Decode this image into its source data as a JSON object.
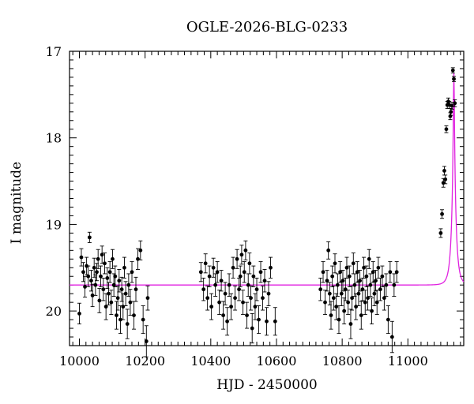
{
  "chart_data": {
    "type": "scatter",
    "title": "OGLE-2026-BLG-0233",
    "xlabel": "HJD - 2450000",
    "ylabel": "I magnitude",
    "xlim": [
      9970,
      11170
    ],
    "ylim": [
      17.0,
      20.4
    ],
    "y_inverted": true,
    "first_y_tick": 17,
    "x_ticks": [
      10000,
      10200,
      10400,
      10600,
      10800,
      11000
    ],
    "y_ticks": [
      17,
      18,
      19,
      20
    ],
    "x_tick_labels": [
      "10000",
      "10200",
      "10400",
      "10600",
      "10800",
      "11000"
    ],
    "y_tick_labels": [
      "17",
      "18",
      "19",
      "20"
    ],
    "colors": {
      "points": "#000000",
      "model": "#e020e0"
    },
    "series": [
      {
        "style": "points-with-errorbars",
        "points": [
          [
            10000,
            20.03,
            0.12
          ],
          [
            10006,
            19.38,
            0.1
          ],
          [
            10012,
            19.55,
            0.11
          ],
          [
            10017,
            19.72,
            0.12
          ],
          [
            10022,
            19.48,
            0.1
          ],
          [
            10027,
            19.6,
            0.12
          ],
          [
            10031,
            19.15,
            0.06
          ],
          [
            10036,
            19.65,
            0.12
          ],
          [
            10040,
            19.82,
            0.13
          ],
          [
            10045,
            19.5,
            0.11
          ],
          [
            10049,
            19.7,
            0.12
          ],
          [
            10053,
            19.55,
            0.1
          ],
          [
            10057,
            19.4,
            0.11
          ],
          [
            10061,
            19.88,
            0.14
          ],
          [
            10065,
            19.6,
            0.12
          ],
          [
            10069,
            19.35,
            0.1
          ],
          [
            10073,
            19.75,
            0.13
          ],
          [
            10077,
            19.45,
            0.12
          ],
          [
            10081,
            19.95,
            0.15
          ],
          [
            10085,
            19.62,
            0.12
          ],
          [
            10089,
            19.8,
            0.13
          ],
          [
            10093,
            19.55,
            0.12
          ],
          [
            10097,
            19.9,
            0.14
          ],
          [
            10101,
            19.4,
            0.11
          ],
          [
            10105,
            19.7,
            0.13
          ],
          [
            10109,
            19.6,
            0.12
          ],
          [
            10113,
            20.05,
            0.16
          ],
          [
            10117,
            19.85,
            0.14
          ],
          [
            10121,
            19.65,
            0.13
          ],
          [
            10125,
            20.1,
            0.16
          ],
          [
            10129,
            19.75,
            0.14
          ],
          [
            10133,
            19.95,
            0.15
          ],
          [
            10137,
            19.5,
            0.12
          ],
          [
            10141,
            19.8,
            0.14
          ],
          [
            10146,
            20.15,
            0.17
          ],
          [
            10150,
            19.7,
            0.13
          ],
          [
            10155,
            19.9,
            0.15
          ],
          [
            10160,
            19.55,
            0.12
          ],
          [
            10166,
            20.05,
            0.16
          ],
          [
            10172,
            19.75,
            0.14
          ],
          [
            10178,
            19.4,
            0.12
          ],
          [
            10186,
            19.3,
            0.11
          ],
          [
            10194,
            20.1,
            0.16
          ],
          [
            10204,
            20.35,
            0.18
          ],
          [
            10208,
            19.85,
            0.14
          ],
          [
            10370,
            19.55,
            0.11
          ],
          [
            10378,
            19.75,
            0.13
          ],
          [
            10384,
            19.45,
            0.11
          ],
          [
            10390,
            19.85,
            0.14
          ],
          [
            10396,
            19.6,
            0.12
          ],
          [
            10402,
            19.95,
            0.15
          ],
          [
            10408,
            19.5,
            0.11
          ],
          [
            10414,
            19.7,
            0.13
          ],
          [
            10420,
            19.55,
            0.12
          ],
          [
            10426,
            19.9,
            0.14
          ],
          [
            10432,
            19.65,
            0.12
          ],
          [
            10438,
            20.05,
            0.16
          ],
          [
            10444,
            19.8,
            0.13
          ],
          [
            10450,
            20.12,
            0.16
          ],
          [
            10456,
            19.7,
            0.13
          ],
          [
            10462,
            19.95,
            0.15
          ],
          [
            10468,
            19.5,
            0.12
          ],
          [
            10474,
            19.85,
            0.14
          ],
          [
            10480,
            19.4,
            0.11
          ],
          [
            10486,
            19.75,
            0.13
          ],
          [
            10490,
            19.6,
            0.12
          ],
          [
            10494,
            19.35,
            0.11
          ],
          [
            10498,
            19.9,
            0.14
          ],
          [
            10502,
            19.55,
            0.12
          ],
          [
            10506,
            19.3,
            0.11
          ],
          [
            10510,
            20.05,
            0.15
          ],
          [
            10514,
            19.7,
            0.13
          ],
          [
            10518,
            19.45,
            0.12
          ],
          [
            10522,
            19.85,
            0.14
          ],
          [
            10526,
            20.2,
            0.17
          ],
          [
            10530,
            19.6,
            0.12
          ],
          [
            10535,
            19.95,
            0.15
          ],
          [
            10540,
            19.75,
            0.13
          ],
          [
            10546,
            20.1,
            0.16
          ],
          [
            10552,
            19.55,
            0.12
          ],
          [
            10558,
            19.85,
            0.14
          ],
          [
            10564,
            19.65,
            0.13
          ],
          [
            10570,
            20.12,
            0.16
          ],
          [
            10576,
            19.8,
            0.14
          ],
          [
            10582,
            19.5,
            0.12
          ],
          [
            10596,
            20.12,
            0.16
          ],
          [
            10734,
            19.75,
            0.13
          ],
          [
            10742,
            19.55,
            0.12
          ],
          [
            10748,
            19.9,
            0.14
          ],
          [
            10754,
            19.65,
            0.12
          ],
          [
            10758,
            19.3,
            0.1
          ],
          [
            10762,
            19.8,
            0.13
          ],
          [
            10766,
            20.05,
            0.16
          ],
          [
            10770,
            19.6,
            0.12
          ],
          [
            10774,
            19.85,
            0.14
          ],
          [
            10778,
            19.45,
            0.11
          ],
          [
            10782,
            19.95,
            0.15
          ],
          [
            10786,
            19.7,
            0.13
          ],
          [
            10790,
            20.1,
            0.16
          ],
          [
            10794,
            19.55,
            0.12
          ],
          [
            10798,
            19.8,
            0.14
          ],
          [
            10802,
            19.65,
            0.12
          ],
          [
            10806,
            20.0,
            0.15
          ],
          [
            10810,
            19.75,
            0.13
          ],
          [
            10814,
            19.5,
            0.12
          ],
          [
            10818,
            19.9,
            0.14
          ],
          [
            10822,
            19.6,
            0.12
          ],
          [
            10826,
            20.15,
            0.17
          ],
          [
            10830,
            19.85,
            0.14
          ],
          [
            10834,
            19.45,
            0.12
          ],
          [
            10838,
            19.7,
            0.13
          ],
          [
            10842,
            19.95,
            0.15
          ],
          [
            10846,
            19.55,
            0.12
          ],
          [
            10850,
            19.8,
            0.14
          ],
          [
            10854,
            19.65,
            0.12
          ],
          [
            10858,
            20.05,
            0.16
          ],
          [
            10862,
            19.75,
            0.13
          ],
          [
            10866,
            19.5,
            0.12
          ],
          [
            10870,
            19.9,
            0.14
          ],
          [
            10874,
            19.6,
            0.12
          ],
          [
            10878,
            19.85,
            0.14
          ],
          [
            10882,
            19.4,
            0.11
          ],
          [
            10886,
            19.7,
            0.13
          ],
          [
            10890,
            20.0,
            0.15
          ],
          [
            10894,
            19.55,
            0.12
          ],
          [
            10898,
            19.8,
            0.14
          ],
          [
            10902,
            19.65,
            0.12
          ],
          [
            10906,
            19.9,
            0.14
          ],
          [
            10910,
            19.5,
            0.12
          ],
          [
            10916,
            19.75,
            0.13
          ],
          [
            10922,
            19.6,
            0.12
          ],
          [
            10928,
            19.85,
            0.14
          ],
          [
            10934,
            19.7,
            0.13
          ],
          [
            10940,
            20.1,
            0.16
          ],
          [
            10946,
            19.55,
            0.12
          ],
          [
            10952,
            20.3,
            0.18
          ],
          [
            10958,
            19.7,
            0.13
          ],
          [
            10966,
            19.55,
            0.12
          ],
          [
            11100,
            19.1,
            0.05
          ],
          [
            11104,
            18.88,
            0.05
          ],
          [
            11108,
            18.52,
            0.05
          ],
          [
            11111,
            18.38,
            0.05
          ],
          [
            11114,
            18.48,
            0.05
          ],
          [
            11117,
            17.9,
            0.04
          ],
          [
            11120,
            17.62,
            0.04
          ],
          [
            11123,
            17.58,
            0.04
          ],
          [
            11126,
            17.62,
            0.04
          ],
          [
            11129,
            17.75,
            0.04
          ],
          [
            11131,
            17.7,
            0.04
          ],
          [
            11134,
            17.63,
            0.04
          ],
          [
            11137,
            17.22,
            0.03
          ],
          [
            11140,
            17.32,
            0.03
          ],
          [
            11143,
            17.6,
            0.04
          ]
        ]
      },
      {
        "style": "model-curve",
        "model": {
          "baseline": 19.7,
          "t0": 11140,
          "tE": 12.5,
          "u0": 0.105,
          "t_start": 9970,
          "t_end": 11170
        }
      }
    ]
  }
}
